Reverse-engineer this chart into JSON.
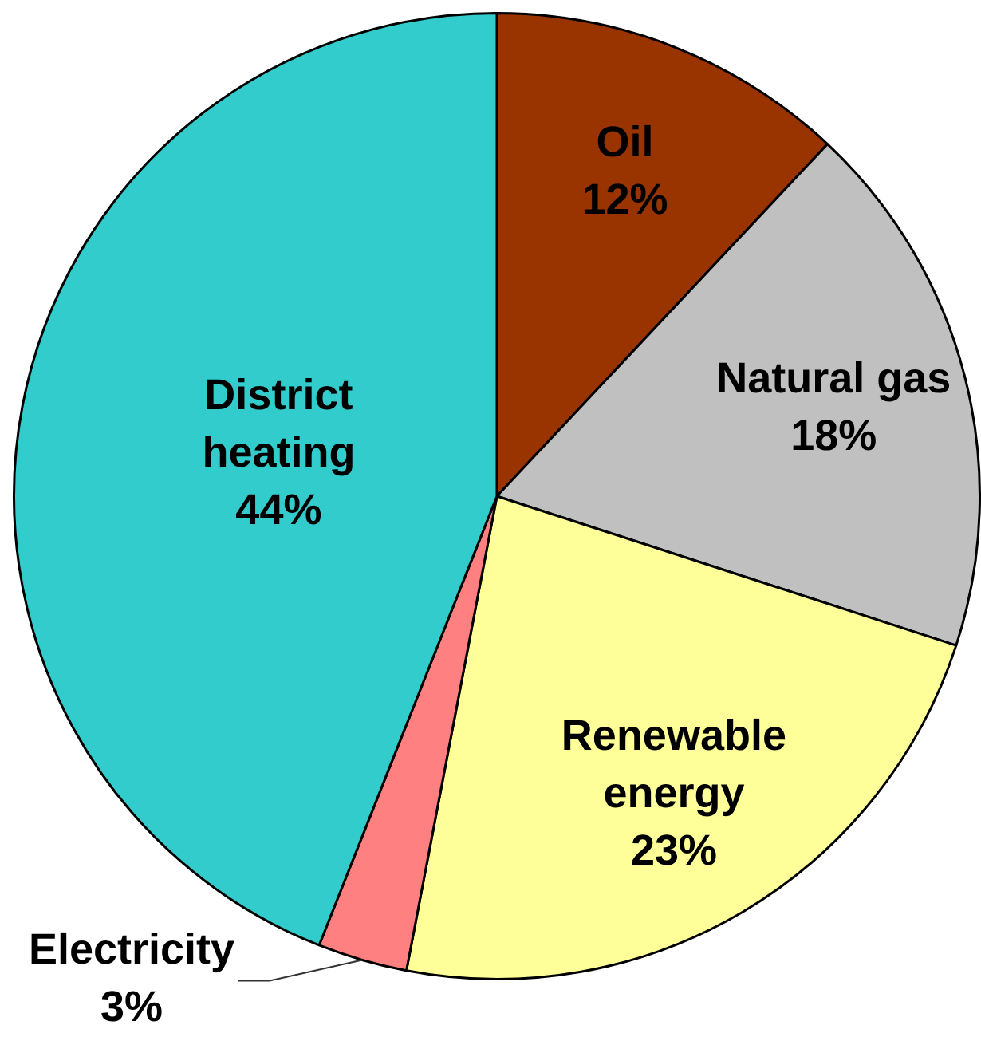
{
  "chart_data": {
    "type": "pie",
    "categories": [
      "Oil",
      "Natural gas",
      "Renewable energy",
      "Electricity",
      "District heating"
    ],
    "values": [
      12,
      18,
      23,
      3,
      44
    ],
    "colors": [
      "#993300",
      "#c0c0c0",
      "#ffff99",
      "#ff8080",
      "#33cccc"
    ],
    "value_labels": [
      "12%",
      "18%",
      "23%",
      "3%",
      "44%"
    ]
  }
}
